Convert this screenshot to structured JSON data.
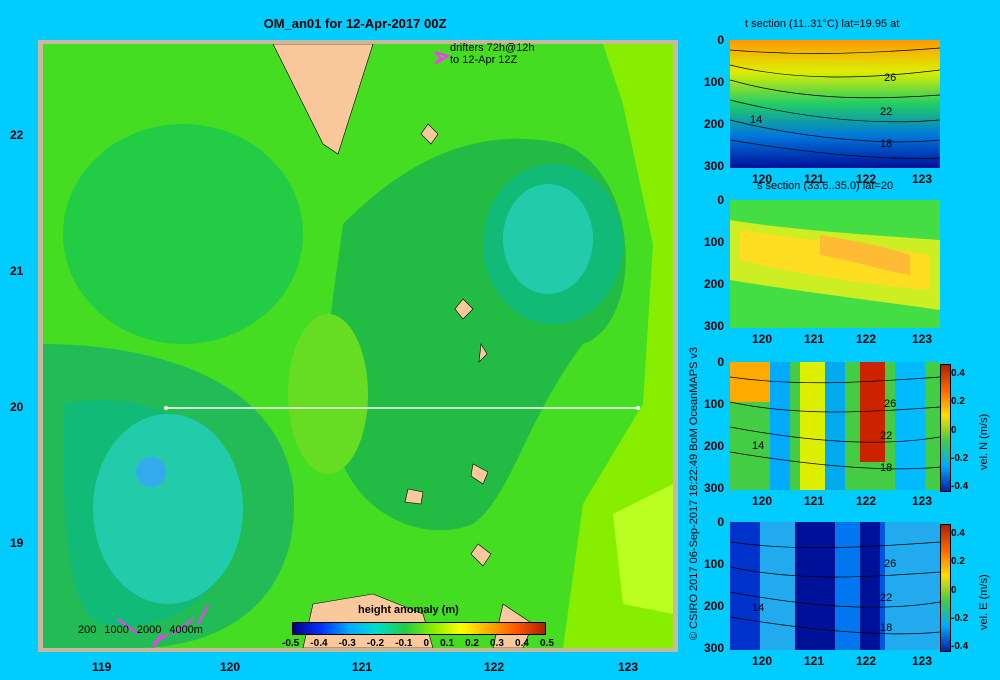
{
  "map": {
    "title": "OM_an01 for 12-Apr-2017 00Z",
    "drifters_line1": "drifters 72h@12h",
    "drifters_line2": "to 12-Apr 12Z",
    "xticks": [
      "119",
      "120",
      "121",
      "122",
      "123"
    ],
    "yticks": [
      "22",
      "21",
      "20",
      "19"
    ],
    "depth_legend": [
      "200",
      "1000",
      "2000",
      "4000m"
    ],
    "colorbar_title": "height anomaly (m)",
    "colorbar_ticks": [
      "-0.5",
      "-0.4",
      "-0.3",
      "-0.2",
      "-0.1",
      "0",
      "0.1",
      "0.2",
      "0.3",
      "0.4",
      "0.5"
    ],
    "colors": {
      "land": "#f9c89b",
      "frame": "#c8b89c",
      "drifter": "#ff33ff",
      "section_line": "#ffffff"
    }
  },
  "copyright": "© CSIRO 2017   06-Sep-2017 18:22:49 BoM OceanMAPS v3",
  "panels": [
    {
      "title": "t section (11..31°C) lat=19.95 at",
      "contour_labels": [
        "26",
        "22",
        "18",
        "14"
      ],
      "colorbar": null
    },
    {
      "title": "s section (33.6..35.0) lat=20",
      "contour_labels": [],
      "colorbar": null
    },
    {
      "title": "",
      "contour_labels": [
        "26",
        "22",
        "18",
        "14"
      ],
      "colorbar": {
        "label": "vel. N (m/s)",
        "ticks": [
          "0.4",
          "0.2",
          "0",
          "-0.2",
          "-0.4"
        ]
      }
    },
    {
      "title": "",
      "contour_labels": [
        "26",
        "22",
        "18",
        "14"
      ],
      "colorbar": {
        "label": "vel. E (m/s)",
        "ticks": [
          "0.4",
          "0.2",
          "0",
          "-0.2",
          "-0.4"
        ]
      }
    }
  ],
  "section_xticks": [
    "120",
    "121",
    "122",
    "123"
  ],
  "section_yticks": [
    "0",
    "100",
    "200",
    "300"
  ]
}
